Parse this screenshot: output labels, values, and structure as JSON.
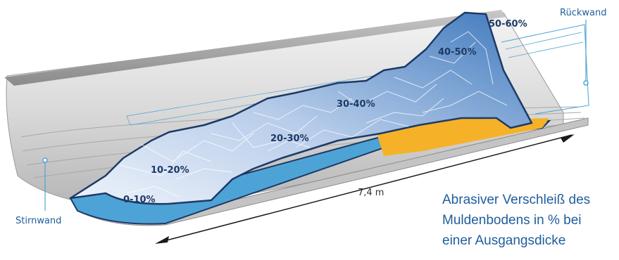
{
  "labels": {
    "stirnwand": "Stirnwand",
    "rueckwand": "Rückwand",
    "length": "7,4 m"
  },
  "zones": [
    {
      "label": "0-10%"
    },
    {
      "label": "10-20%"
    },
    {
      "label": "20-30%"
    },
    {
      "label": "30-40%"
    },
    {
      "label": "40-50%"
    },
    {
      "label": "50-60%"
    }
  ],
  "caption": {
    "line1": "Abrasiver Verschleiß des",
    "line2": "Muldenbodens in % bei",
    "line3": "einer Ausgangsdicke"
  },
  "colors": {
    "accent_blue": "#4ea3d6",
    "wear_orange": "#f5b228",
    "outline_navy": "#1d3a66",
    "label_blue": "#1f5d9c"
  }
}
